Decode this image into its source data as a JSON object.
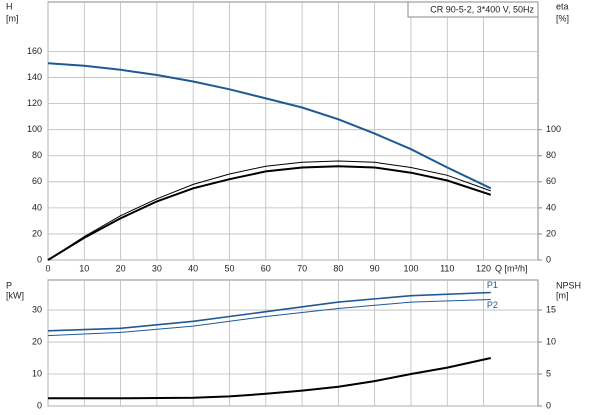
{
  "chart_data": [
    {
      "type": "line",
      "info": "CR 90-5-2, 3*400 V, 50Hz",
      "ylabel": "H",
      "yunit": "[m]",
      "y2label": "eta",
      "y2unit": "[%]",
      "xlabel": "Q [m³/h]",
      "xlim": [
        0,
        135
      ],
      "xticks": [
        0,
        10,
        20,
        30,
        40,
        50,
        60,
        70,
        80,
        90,
        100,
        110,
        120
      ],
      "show_xtick_labels": true,
      "ylim": [
        0,
        198
      ],
      "yticks": [
        0,
        20,
        40,
        60,
        80,
        100,
        120,
        140,
        160
      ],
      "y2lim": [
        0,
        198
      ],
      "y2ticks": [
        0,
        20,
        40,
        60,
        80,
        100
      ],
      "grid": true,
      "series": [
        {
          "name": "H",
          "color": "#1f5a96",
          "width": 2,
          "axis": "y",
          "show_name": false,
          "x": [
            0,
            10,
            20,
            30,
            40,
            50,
            60,
            70,
            80,
            90,
            100,
            110,
            122
          ],
          "values": [
            151,
            149,
            146,
            142,
            137,
            131,
            124,
            117,
            108,
            97,
            85,
            71,
            55
          ]
        },
        {
          "name": "eta",
          "color": "#000000",
          "width": 1,
          "axis": "y2",
          "show_name": false,
          "x": [
            0,
            10,
            20,
            30,
            40,
            50,
            60,
            70,
            80,
            90,
            100,
            110,
            122
          ],
          "values": [
            0,
            18,
            34,
            47,
            58,
            66,
            72,
            75,
            76,
            75,
            71,
            65,
            53
          ]
        },
        {
          "name": "eta",
          "color": "#000000",
          "width": 2,
          "axis": "y2",
          "show_name": false,
          "x": [
            0,
            10,
            20,
            30,
            40,
            50,
            60,
            70,
            80,
            90,
            100,
            110,
            122
          ],
          "values": [
            0,
            17,
            32,
            45,
            55,
            62,
            68,
            71,
            72,
            71,
            67,
            61,
            50
          ]
        }
      ]
    },
    {
      "type": "line",
      "ylabel": "P",
      "yunit": "[kW]",
      "y2label": "NPSH",
      "y2unit": "[m]",
      "xlim": [
        0,
        135
      ],
      "xticks": [
        0,
        10,
        20,
        30,
        40,
        50,
        60,
        70,
        80,
        90,
        100,
        110,
        120
      ],
      "show_xtick_labels": false,
      "ylim": [
        0,
        39.4
      ],
      "yticks": [
        0,
        10,
        20,
        30
      ],
      "y2lim": [
        0,
        19.7
      ],
      "y2ticks": [
        0,
        5,
        10,
        15
      ],
      "grid": true,
      "series": [
        {
          "name": "P1",
          "color": "#1f5a96",
          "width": 1.6,
          "axis": "y",
          "show_name": true,
          "x": [
            0,
            20,
            40,
            60,
            80,
            100,
            122
          ],
          "values": [
            23.5,
            24.3,
            26.5,
            29.5,
            32.5,
            34.5,
            35.5
          ]
        },
        {
          "name": "P2",
          "color": "#1f5a96",
          "width": 1,
          "axis": "y",
          "show_name": true,
          "x": [
            0,
            20,
            40,
            60,
            80,
            100,
            122
          ],
          "values": [
            22,
            23,
            25,
            28,
            30.5,
            32.5,
            33.3
          ]
        },
        {
          "name": "NPSH",
          "color": "#000000",
          "width": 2,
          "axis": "y2",
          "show_name": false,
          "x": [
            0,
            20,
            40,
            50,
            60,
            70,
            80,
            90,
            100,
            110,
            122
          ],
          "values": [
            1.2,
            1.2,
            1.3,
            1.5,
            1.9,
            2.4,
            3,
            3.9,
            5,
            6,
            7.5
          ]
        }
      ]
    }
  ]
}
